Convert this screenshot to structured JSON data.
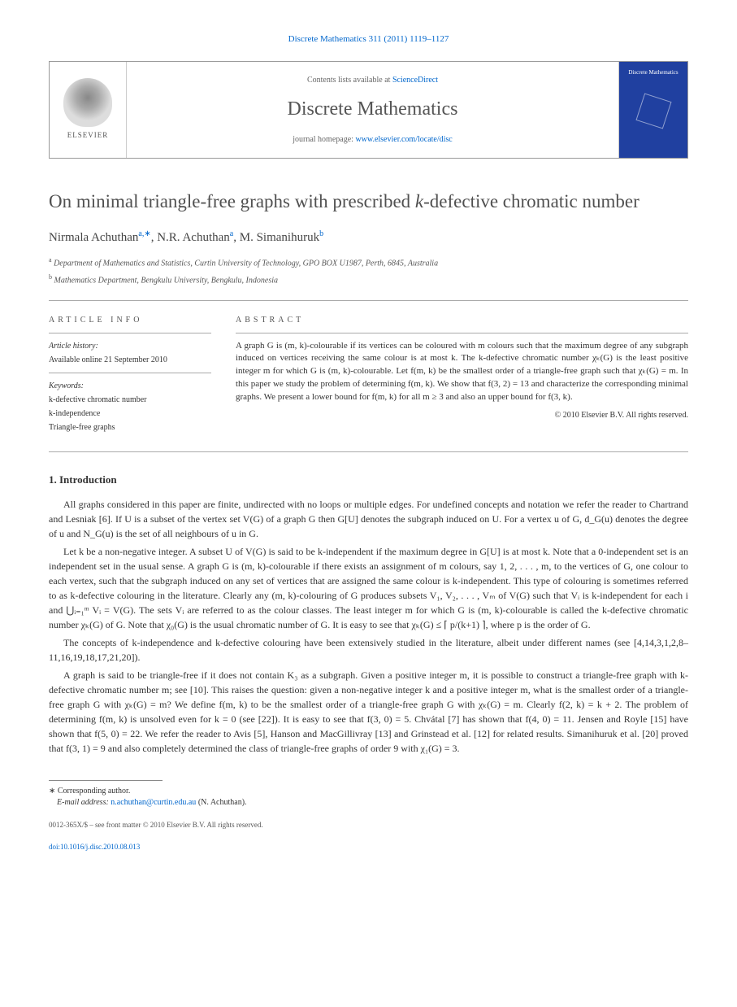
{
  "header": {
    "journal_citation": "Discrete Mathematics 311 (2011) 1119–1127",
    "contents_prefix": "Contents lists available at ",
    "contents_link": "ScienceDirect",
    "journal_name": "Discrete Mathematics",
    "homepage_prefix": "journal homepage: ",
    "homepage_link": "www.elsevier.com/locate/disc",
    "publisher_name": "ELSEVIER",
    "cover_title": "Discrete Mathematics"
  },
  "title": {
    "text": "On minimal triangle-free graphs with prescribed k-defective chromatic number"
  },
  "authors": {
    "line_html": "Nirmala Achuthan",
    "a1_name": "Nirmala Achuthan",
    "a1_mark": "a,∗",
    "a2_name": "N.R. Achuthan",
    "a2_mark": "a",
    "a3_name": "M. Simanihuruk",
    "a3_mark": "b"
  },
  "affiliations": {
    "a": "Department of Mathematics and Statistics, Curtin University of Technology, GPO BOX U1987, Perth, 6845, Australia",
    "b": "Mathematics Department, Bengkulu University, Bengkulu, Indonesia"
  },
  "article_info": {
    "heading": "ARTICLE INFO",
    "history_heading": "Article history:",
    "available": "Available online 21 September 2010",
    "keywords_heading": "Keywords:",
    "kw1": "k-defective chromatic number",
    "kw2": "k-independence",
    "kw3": "Triangle-free graphs"
  },
  "abstract": {
    "heading": "ABSTRACT",
    "body": "A graph G is (m, k)-colourable if its vertices can be coloured with m colours such that the maximum degree of any subgraph induced on vertices receiving the same colour is at most k. The k-defective chromatic number χₖ(G) is the least positive integer m for which G is (m, k)-colourable. Let f(m, k) be the smallest order of a triangle-free graph such that χₖ(G) = m. In this paper we study the problem of determining f(m, k). We show that f(3, 2) = 13 and characterize the corresponding minimal graphs. We present a lower bound for f(m, k) for all m ≥ 3 and also an upper bound for f(3, k).",
    "copyright": "© 2010 Elsevier B.V. All rights reserved."
  },
  "section1": {
    "heading": "1. Introduction",
    "p1": "All graphs considered in this paper are finite, undirected with no loops or multiple edges. For undefined concepts and notation we refer the reader to Chartrand and Lesniak [6]. If U is a subset of the vertex set V(G) of a graph G then G[U] denotes the subgraph induced on U. For a vertex u of G, d_G(u) denotes the degree of u and N_G(u) is the set of all neighbours of u in G.",
    "p2": "Let k be a non-negative integer. A subset U of V(G) is said to be k-independent if the maximum degree in G[U] is at most k. Note that a 0-independent set is an independent set in the usual sense. A graph G is (m, k)-colourable if there exists an assignment of m colours, say 1, 2, . . . , m, to the vertices of G, one colour to each vertex, such that the subgraph induced on any set of vertices that are assigned the same colour is k-independent. This type of colouring is sometimes referred to as k-defective colouring in the literature. Clearly any (m, k)-colouring of G produces subsets V₁, V₂, . . . , Vₘ of V(G) such that Vᵢ is k-independent for each i and ⋃ᵢ₌₁ᵐ Vᵢ = V(G). The sets Vᵢ are referred to as the colour classes. The least integer m for which G is (m, k)-colourable is called the k-defective chromatic number χₖ(G) of G. Note that χ₀(G) is the usual chromatic number of G. It is easy to see that χₖ(G) ≤ ⌈ p/(k+1) ⌉, where p is the order of G.",
    "p3": "The concepts of k-independence and k-defective colouring have been extensively studied in the literature, albeit under different names (see [4,14,3,1,2,8–11,16,19,18,17,21,20]).",
    "p4": "A graph is said to be triangle-free if it does not contain K₃ as a subgraph. Given a positive integer m, it is possible to construct a triangle-free graph with k-defective chromatic number m; see [10]. This raises the question: given a non-negative integer k and a positive integer m, what is the smallest order of a triangle-free graph G with χₖ(G) = m? We define f(m, k) to be the smallest order of a triangle-free graph G with χₖ(G) = m. Clearly f(2, k) = k + 2. The problem of determining f(m, k) is unsolved even for k = 0 (see [22]). It is easy to see that f(3, 0) = 5. Chvátal [7] has shown that f(4, 0) = 11. Jensen and Royle [15] have shown that f(5, 0) = 22. We refer the reader to Avis [5], Hanson and MacGillivray [13] and Grinstead et al. [12] for related results. Simanihuruk et al. [20] proved that f(3, 1) = 9 and also completely determined the class of triangle-free graphs of order 9 with χ₁(G) = 3."
  },
  "footnote": {
    "corresponding": "∗ Corresponding author.",
    "email_label": "E-mail address:",
    "email": "n.achuthan@curtin.edu.au",
    "email_name": "(N. Achuthan)."
  },
  "bottom": {
    "issn_line": "0012-365X/$ – see front matter © 2010 Elsevier B.V. All rights reserved.",
    "doi_label": "doi:",
    "doi": "10.1016/j.disc.2010.08.013"
  },
  "links": {
    "refs_color": "#0066cc"
  },
  "colors": {
    "text": "#333333",
    "heading": "#505050",
    "link": "#0066cc",
    "cover_bg": "#2040a0",
    "border": "#999999"
  },
  "typography": {
    "body_pt": 12,
    "title_pt": 23,
    "abstract_pt": 11,
    "footnote_pt": 10,
    "journal_name_pt": 24
  }
}
